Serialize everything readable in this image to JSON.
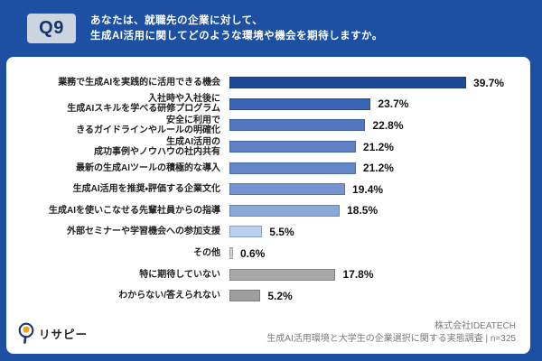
{
  "header": {
    "badge": "Q9",
    "title_line1": "あなたは、就職先の企業に対して、",
    "title_line2": "生成AI活用に関してどのような環境や機会を期待しますか。"
  },
  "chart_data": {
    "type": "bar",
    "orientation": "horizontal",
    "unit": "%",
    "xlim": [
      0,
      45
    ],
    "grid": false,
    "legend": false,
    "value_labels": "end-of-bar",
    "categories": [
      "業務で生成AIを実践的に活用できる機会",
      "入社時や入社後に\n生成AIスキルを学べる研修プログラム",
      "安全に利用で\nきるガイドラインやルールの明確化",
      "生成AI活用の\n成功事例やノウハウの社内共有",
      "最新の生成AIツールの積極的な導入",
      "生成AI活用を推奨・評価する企業文化",
      "生成AIを使いこなせる先輩社員からの指導",
      "外部セミナーや学習機会への参加支援",
      "その他",
      "特に期待していない",
      "わからない/答えられない"
    ],
    "values": [
      39.7,
      23.7,
      22.8,
      21.2,
      21.2,
      19.4,
      18.5,
      5.5,
      0.6,
      17.8,
      5.2
    ],
    "bar_colors": [
      "#1c4898",
      "#3a63b5",
      "#5377bf",
      "#5f80c5",
      "#6487c9",
      "#7695d0",
      "#8ba8da",
      "#bccfee",
      "#cdd3db",
      "#a8a8a8",
      "#9e9e9e"
    ],
    "gray_from_index": 8
  },
  "footer": {
    "logo_text": "リサピー",
    "source_company": "株式会社IDEATECH",
    "source_desc": "生成AI活用環境と大学生の企業選択に関する実態調査 | n=325"
  },
  "colors": {
    "frame": "#1d4fa2",
    "badge_bg": "#ccd4df",
    "badge_text": "#14356b",
    "card_bg": "#ffffff",
    "label_text": "#222222",
    "value_text": "#111111",
    "footer_text": "#7a7a7a"
  }
}
